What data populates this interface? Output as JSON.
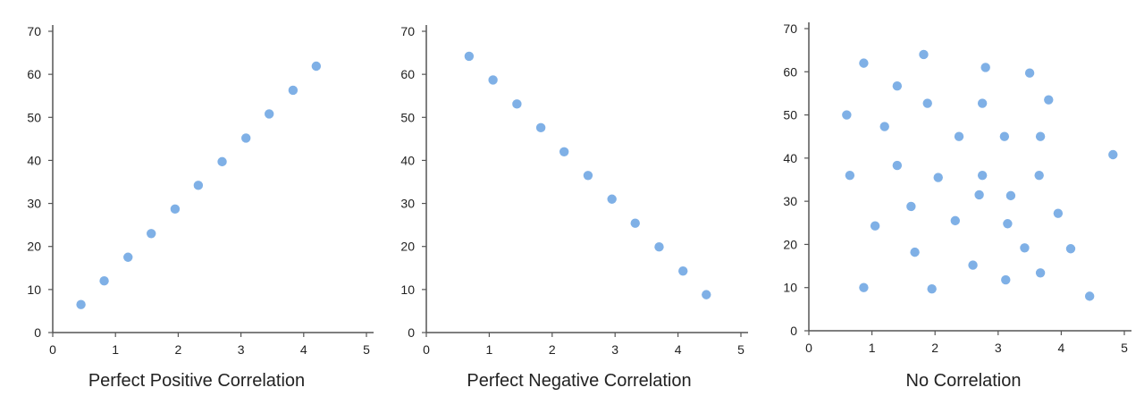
{
  "chart_data": [
    {
      "type": "scatter",
      "title": "Perfect Positive Correlation",
      "xlabel": "",
      "ylabel": "",
      "xlim": [
        0,
        5
      ],
      "ylim": [
        0,
        70
      ],
      "xticks": [
        0,
        1,
        2,
        3,
        4,
        5
      ],
      "yticks": [
        0,
        10,
        20,
        30,
        40,
        50,
        60,
        70
      ],
      "grid": false,
      "color": "#7fb0e6",
      "points": [
        {
          "x": 0.45,
          "y": 6.5
        },
        {
          "x": 0.82,
          "y": 12
        },
        {
          "x": 1.2,
          "y": 17.5
        },
        {
          "x": 1.57,
          "y": 23
        },
        {
          "x": 1.95,
          "y": 28.7
        },
        {
          "x": 2.32,
          "y": 34.2
        },
        {
          "x": 2.7,
          "y": 39.7
        },
        {
          "x": 3.08,
          "y": 45.2
        },
        {
          "x": 3.45,
          "y": 50.8
        },
        {
          "x": 3.83,
          "y": 56.3
        },
        {
          "x": 4.2,
          "y": 61.9
        }
      ]
    },
    {
      "type": "scatter",
      "title": "Perfect Negative Correlation",
      "xlabel": "",
      "ylabel": "",
      "xlim": [
        0,
        5
      ],
      "ylim": [
        0,
        70
      ],
      "xticks": [
        0,
        1,
        2,
        3,
        4,
        5
      ],
      "yticks": [
        0,
        10,
        20,
        30,
        40,
        50,
        60,
        70
      ],
      "grid": false,
      "color": "#7fb0e6",
      "points": [
        {
          "x": 0.68,
          "y": 64.2
        },
        {
          "x": 1.06,
          "y": 58.7
        },
        {
          "x": 1.44,
          "y": 53.1
        },
        {
          "x": 1.82,
          "y": 47.6
        },
        {
          "x": 2.19,
          "y": 42
        },
        {
          "x": 2.57,
          "y": 36.5
        },
        {
          "x": 2.95,
          "y": 31
        },
        {
          "x": 3.32,
          "y": 25.4
        },
        {
          "x": 3.7,
          "y": 19.9
        },
        {
          "x": 4.08,
          "y": 14.3
        },
        {
          "x": 4.45,
          "y": 8.8
        }
      ]
    },
    {
      "type": "scatter",
      "title": "No Correlation",
      "xlabel": "",
      "ylabel": "",
      "xlim": [
        0,
        5
      ],
      "ylim": [
        0,
        70
      ],
      "xticks": [
        0,
        1,
        2,
        3,
        4,
        5
      ],
      "yticks": [
        0,
        10,
        20,
        30,
        40,
        50,
        60,
        70
      ],
      "grid": false,
      "color": "#7fb0e6",
      "points": [
        {
          "x": 0.6,
          "y": 50
        },
        {
          "x": 0.65,
          "y": 36
        },
        {
          "x": 0.87,
          "y": 62
        },
        {
          "x": 0.87,
          "y": 10
        },
        {
          "x": 1.05,
          "y": 24.3
        },
        {
          "x": 1.2,
          "y": 47.3
        },
        {
          "x": 1.4,
          "y": 56.7
        },
        {
          "x": 1.4,
          "y": 38.3
        },
        {
          "x": 1.62,
          "y": 28.8
        },
        {
          "x": 1.68,
          "y": 18.2
        },
        {
          "x": 1.82,
          "y": 64
        },
        {
          "x": 1.88,
          "y": 52.7
        },
        {
          "x": 1.95,
          "y": 9.7
        },
        {
          "x": 2.05,
          "y": 35.5
        },
        {
          "x": 2.32,
          "y": 25.5
        },
        {
          "x": 2.38,
          "y": 45
        },
        {
          "x": 2.6,
          "y": 15.2
        },
        {
          "x": 2.7,
          "y": 31.5
        },
        {
          "x": 2.75,
          "y": 52.7
        },
        {
          "x": 2.75,
          "y": 36
        },
        {
          "x": 2.8,
          "y": 61
        },
        {
          "x": 3.1,
          "y": 45
        },
        {
          "x": 3.12,
          "y": 11.8
        },
        {
          "x": 3.15,
          "y": 24.8
        },
        {
          "x": 3.2,
          "y": 31.3
        },
        {
          "x": 3.42,
          "y": 19.2
        },
        {
          "x": 3.5,
          "y": 59.7
        },
        {
          "x": 3.65,
          "y": 36
        },
        {
          "x": 3.67,
          "y": 45
        },
        {
          "x": 3.67,
          "y": 13.4
        },
        {
          "x": 3.8,
          "y": 53.5
        },
        {
          "x": 3.95,
          "y": 27.2
        },
        {
          "x": 4.15,
          "y": 19
        },
        {
          "x": 4.45,
          "y": 8
        },
        {
          "x": 4.82,
          "y": 40.8
        }
      ]
    }
  ]
}
